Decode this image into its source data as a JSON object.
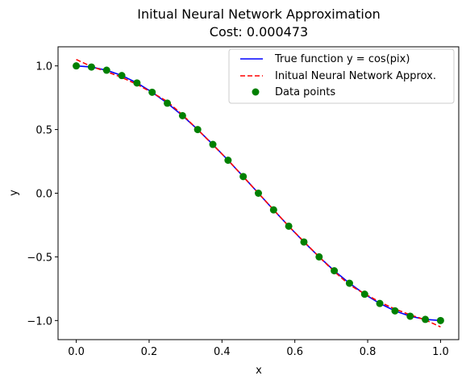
{
  "chart_data": {
    "type": "line",
    "title": "Initual Neural Network Approximation",
    "subtitle": "Cost: 0.000473",
    "xlabel": "x",
    "ylabel": "y",
    "xlim": [
      -0.05,
      1.05
    ],
    "ylim": [
      -1.15,
      1.15
    ],
    "xticks": [
      0.0,
      0.2,
      0.4,
      0.6,
      0.8,
      1.0
    ],
    "xtick_labels": [
      "0.0",
      "0.2",
      "0.4",
      "0.6",
      "0.8",
      "1.0"
    ],
    "yticks": [
      -1.0,
      -0.5,
      0.0,
      0.5,
      1.0
    ],
    "ytick_labels": [
      "−1.0",
      "−0.5",
      "0.0",
      "0.5",
      "1.0"
    ],
    "grid": false,
    "legend_position": "top-right",
    "series": [
      {
        "name": "True function y = cos(pix)",
        "kind": "line",
        "color": "#0000ff",
        "style": "solid",
        "x": [
          0.0,
          0.0417,
          0.0833,
          0.125,
          0.1667,
          0.2083,
          0.25,
          0.2917,
          0.3333,
          0.375,
          0.4167,
          0.4583,
          0.5,
          0.5417,
          0.5833,
          0.625,
          0.6667,
          0.7083,
          0.75,
          0.7917,
          0.8333,
          0.875,
          0.9167,
          0.9583,
          1.0
        ],
        "y": [
          1.0,
          0.991,
          0.966,
          0.924,
          0.866,
          0.793,
          0.707,
          0.609,
          0.5,
          0.383,
          0.259,
          0.131,
          0.0,
          -0.131,
          -0.259,
          -0.383,
          -0.5,
          -0.609,
          -0.707,
          -0.793,
          -0.866,
          -0.924,
          -0.966,
          -0.991,
          -1.0
        ]
      },
      {
        "name": "Initual Neural Network Approx.",
        "kind": "line",
        "color": "#ff0000",
        "style": "dashed",
        "x": [
          0.0,
          0.0417,
          0.0833,
          0.125,
          0.1667,
          0.2083,
          0.25,
          0.2917,
          0.3333,
          0.375,
          0.4167,
          0.4583,
          0.5,
          0.5417,
          0.5833,
          0.625,
          0.6667,
          0.7083,
          0.75,
          0.7917,
          0.8333,
          0.875,
          0.9167,
          0.9583,
          1.0
        ],
        "y": [
          1.05,
          0.995,
          0.955,
          0.91,
          0.855,
          0.79,
          0.72,
          0.615,
          0.5,
          0.38,
          0.26,
          0.13,
          0.0,
          -0.13,
          -0.26,
          -0.38,
          -0.5,
          -0.615,
          -0.72,
          -0.79,
          -0.855,
          -0.91,
          -0.955,
          -0.995,
          -1.05
        ]
      },
      {
        "name": "Data points",
        "kind": "scatter",
        "color": "#008000",
        "x": [
          0.0,
          0.0417,
          0.0833,
          0.125,
          0.1667,
          0.2083,
          0.25,
          0.2917,
          0.3333,
          0.375,
          0.4167,
          0.4583,
          0.5,
          0.5417,
          0.5833,
          0.625,
          0.6667,
          0.7083,
          0.75,
          0.7917,
          0.8333,
          0.875,
          0.9167,
          0.9583,
          1.0
        ],
        "y": [
          1.0,
          0.991,
          0.966,
          0.924,
          0.866,
          0.793,
          0.707,
          0.609,
          0.5,
          0.383,
          0.259,
          0.131,
          0.0,
          -0.131,
          -0.259,
          -0.383,
          -0.5,
          -0.609,
          -0.707,
          -0.793,
          -0.866,
          -0.924,
          -0.966,
          -0.991,
          -1.0
        ]
      }
    ]
  }
}
